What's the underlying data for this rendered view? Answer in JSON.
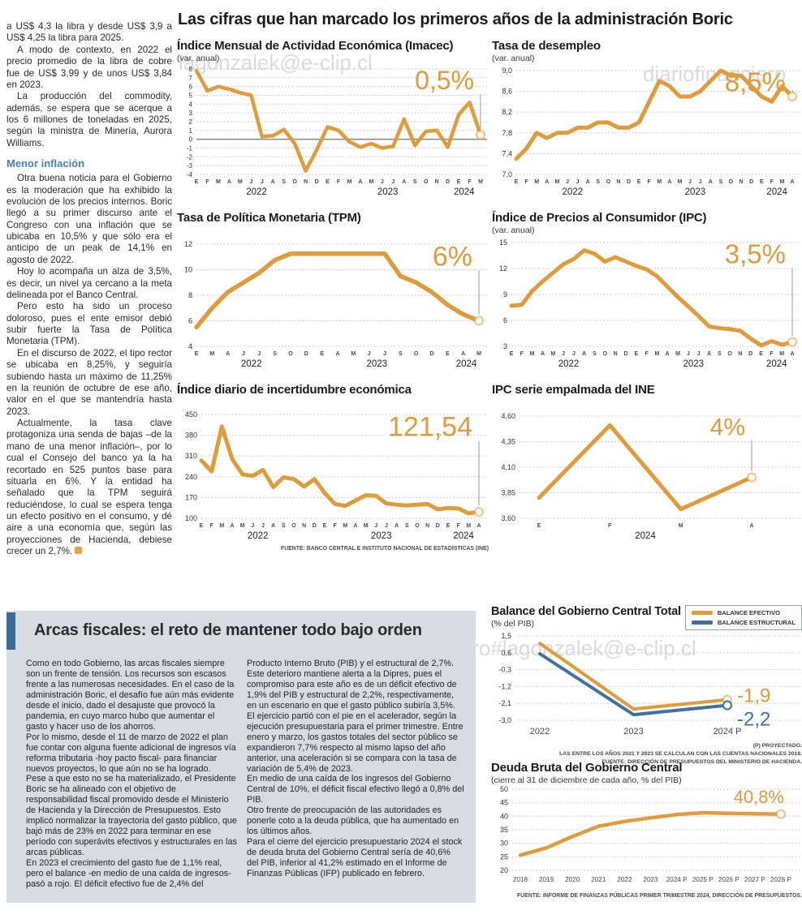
{
  "page": {
    "watermarks": {
      "w1": "lagonzalek@e-clip.cl",
      "w2": "diariofinanciero",
      "w3": "diariofinanciero#lagonzalek@e-clip.cl"
    }
  },
  "headline": "Las cifras que han marcado los primeros años de la administración Boric",
  "left_article": {
    "paragraphs": [
      "a US$ 4,3 la libra y desde US$ 3,9 a US$ 4,25 la libra para 2025.",
      "A modo de contexto, en 2022 el precio promedio de la libra de cobre fue de US$ 3,99 y de unos US$ 3,84 en 2023.",
      "La producción del commodity, además, se espera que se acerque a los 6 millones de toneladas en 2025, según la ministra de Minería, Aurora Williams."
    ],
    "subhead": "Menor inflación",
    "paragraphs2": [
      "Otra buena noticia para el Gobierno es la moderación que ha exhibido la evolución de los precios internos. Boric llegó a su primer discurso ante el Congreso con una inflación que se ubicaba en 10,5% y que sólo era el anticipo de un peak de 14,1% en agosto de 2022.",
      "Hoy lo acompaña un alza de 3,5%, es decir, un nivel ya cercano a la meta delineada por el Banco Central.",
      "Pero esto ha sido un proceso doloroso, pues el ente emisor debió subir fuerte la Tasa de Política Monetaria (TPM).",
      "En el discurso de 2022, el tipo rector se ubicaba en 8,25%, y seguiría subiendo hasta un máximo de 11,25% en la reunión de octubre de ese año, valor en el que se mantendría hasta 2023.",
      "Actualmente, la tasa clave protagoniza una senda de bajas –de la mano de una menor inflación–, por lo cual el Consejo del banco ya la ha recortado en 525 puntos base para situarla en 6%. Y la entidad ha señalado que la TPM seguirá reduciéndose, lo cual se espera tenga un efecto positivo en el consumo, y dé aire a una economía que, según las proyecciones de Hacienda, debiese crecer un 2,7%."
    ]
  },
  "bottom": {
    "headline": "Arcas fiscales: el reto de mantener todo bajo orden",
    "col1": [
      "Como en todo Gobierno, las arcas fiscales siempre son un frente de tensión. Los recursos son escasos frente a las numerosas necesidades. En el caso de la administración Boric, el desafío fue aún más evidente desde el inicio, dado el desajuste que provocó la pandemia, en cuyo marco hubo que aumentar el gasto y hacer uso de los ahorros.",
      "Por lo mismo, desde el 11 de marzo de 2022 el plan fue contar con alguna fuente adicional de ingresos vía reforma tributaria -hoy pacto fiscal- para financiar nuevos proyectos, lo que aún no se ha logrado.",
      "Pese a que esto no se ha materializado, el Presidente Boric se ha alineado con el objetivo de responsabilidad fiscal promovido desde el Ministerio de Hacienda y la Dirección de Presupuestos. Esto implicó normalizar la trayectoria del gasto público, que bajó más de 23% en 2022 para terminar en ese período con superávits efectivos y estructurales en las arcas públicas.",
      "En 2023 el crecimiento del gasto fue de 1,1% real, pero el balance -en medio de una caída de ingresos- pasó a rojo. El déficit efectivo fue de 2,4% del"
    ],
    "col2": [
      "Producto Interno Bruto (PIB) y el estructural de 2,7%. Este deterioro mantiene alerta a la Dipres, pues el compromiso para este año es de un déficit efectivo de 1,9% del PIB y estructural de 2,2%, respectivamente, en un escenario en que el gasto público subiría 3,5%.",
      "El ejercicio partió con el pie en el acelerador, según la ejecución presupuestaria para el primer trimestre. Entre enero y marzo, los gastos totales del sector público se expandieron 7,7% respecto al mismo lapso del año anterior, una aceleración si se compara con la tasa de variación de 5,4% de 2023.",
      "En medio de una caída de los ingresos del Gobierno Central de 10%, el déficit fiscal efectivo llegó a 0,8% del PIB.",
      "Otro frente de preocupación de las autoridades es ponerle coto a la deuda pública, que ha aumentado en los últimos años.",
      "Para el cierre del ejercicio presupuestario 2024 el stock de deuda bruta del Gobierno Central sería de 40,6% del PIB, inferior al 41,2% estimado en el Informe de Finanzas Públicas (IFP) publicado en febrero."
    ]
  },
  "colors": {
    "accent_orange": "#E09B3D",
    "accent_blue": "#3D71A4"
  },
  "chart_data": [
    {
      "type": "line",
      "title": "Índice Mensual de Actividad Económica (Imacec)",
      "subtitle": "(var. anual)",
      "ylim": [
        -4,
        8
      ],
      "yticks": [
        [
          8,
          "8"
        ],
        [
          7,
          "7"
        ],
        [
          6,
          "6"
        ],
        [
          5,
          "5"
        ],
        [
          4,
          "4"
        ],
        [
          3,
          "3"
        ],
        [
          2,
          "2"
        ],
        [
          1,
          "1"
        ],
        [
          0,
          "0"
        ],
        [
          -1,
          "-1"
        ],
        [
          -2,
          "-2"
        ],
        [
          -3,
          "-3"
        ],
        [
          -4,
          "-4"
        ]
      ],
      "zero_line": true,
      "x": [
        "E",
        "F",
        "M",
        "A",
        "M",
        "J",
        "J",
        "A",
        "S",
        "O",
        "N",
        "D",
        "E",
        "F",
        "M",
        "A",
        "M",
        "J",
        "J",
        "A",
        "S",
        "O",
        "N",
        "D",
        "E",
        "F",
        "M"
      ],
      "years": [
        {
          "label": "2022",
          "i": 5.5
        },
        {
          "label": "2023",
          "i": 17.5
        },
        {
          "label": "2024",
          "i": 24.5
        }
      ],
      "series": [
        {
          "name": "Imacec",
          "color": "#E09B3D",
          "values": [
            7.8,
            5.5,
            6.0,
            5.7,
            5.3,
            5.0,
            0.3,
            0.4,
            1.1,
            -0.5,
            -3.6,
            -1.2,
            1.4,
            1.0,
            -0.3,
            -0.9,
            -0.5,
            -1.0,
            -0.8,
            2.3,
            -0.7,
            0.9,
            1.0,
            -0.9,
            2.8,
            4.2,
            0.5
          ],
          "end_label": "0,5%"
        }
      ]
    },
    {
      "type": "line",
      "title": "Tasa de desempleo",
      "subtitle": "(var. anual)",
      "ylim": [
        7.0,
        9.0
      ],
      "yticks": [
        [
          9.0,
          "9,0"
        ],
        [
          8.6,
          "8,6"
        ],
        [
          8.2,
          "8,2"
        ],
        [
          7.8,
          "7,8"
        ],
        [
          7.4,
          "7,4"
        ],
        [
          7.0,
          "7,0"
        ]
      ],
      "zero_line": false,
      "x": [
        "E",
        "F",
        "M",
        "A",
        "M",
        "J",
        "J",
        "A",
        "S",
        "O",
        "N",
        "D",
        "E",
        "F",
        "M",
        "A",
        "M",
        "J",
        "J",
        "A",
        "S",
        "O",
        "N",
        "D",
        "E",
        "F",
        "M",
        "A"
      ],
      "years": [
        {
          "label": "2022",
          "i": 5.5
        },
        {
          "label": "2023",
          "i": 17.5
        },
        {
          "label": "2024",
          "i": 25.5
        }
      ],
      "series": [
        {
          "name": "Tasa de desempleo",
          "color": "#E09B3D",
          "values": [
            7.3,
            7.5,
            7.8,
            7.7,
            7.8,
            7.8,
            7.9,
            7.9,
            8.0,
            8.0,
            7.9,
            7.9,
            8.0,
            8.4,
            8.8,
            8.7,
            8.5,
            8.5,
            8.6,
            8.8,
            9.0,
            8.9,
            8.9,
            8.7,
            8.5,
            8.4,
            8.7,
            8.5
          ],
          "end_label": "8,5%"
        }
      ]
    },
    {
      "type": "line",
      "title": "Tasa de Política Monetaria (TPM)",
      "subtitle": "",
      "ylim": [
        4,
        12
      ],
      "yticks": [
        [
          12,
          "12"
        ],
        [
          10,
          "10"
        ],
        [
          8,
          "8"
        ],
        [
          6,
          "6"
        ],
        [
          4,
          "4"
        ]
      ],
      "zero_line": false,
      "x": [
        "E",
        "M",
        "A",
        "J",
        "J",
        "S",
        "O",
        "D",
        "E",
        "A",
        "M",
        "J",
        "J",
        "S",
        "O",
        "D",
        "E",
        "A",
        "M"
      ],
      "years": [
        {
          "label": "2022",
          "i": 3.5
        },
        {
          "label": "2023",
          "i": 11.5
        },
        {
          "label": "2024",
          "i": 17.2
        }
      ],
      "series": [
        {
          "name": "TPM",
          "color": "#E09B3D",
          "values": [
            5.5,
            7.0,
            8.25,
            9.0,
            9.75,
            10.75,
            11.25,
            11.25,
            11.25,
            11.25,
            11.25,
            11.25,
            11.25,
            9.5,
            9.0,
            8.25,
            7.25,
            6.5,
            6.0
          ],
          "end_label": "6%"
        }
      ]
    },
    {
      "type": "line",
      "title": "Índice de Precios al Consumidor (IPC)",
      "subtitle": "(var. anual)",
      "ylim": [
        3,
        15
      ],
      "yticks": [
        [
          15,
          "15"
        ],
        [
          12,
          "12"
        ],
        [
          9,
          "9"
        ],
        [
          6,
          "6"
        ],
        [
          3,
          "3"
        ]
      ],
      "zero_line": false,
      "x": [
        "E",
        "F",
        "M",
        "A",
        "M",
        "J",
        "J",
        "A",
        "S",
        "O",
        "N",
        "D",
        "E",
        "F",
        "M",
        "A",
        "M",
        "J",
        "J",
        "A",
        "S",
        "O",
        "N",
        "D",
        "E",
        "F",
        "M",
        "A"
      ],
      "years": [
        {
          "label": "2022",
          "i": 5.5
        },
        {
          "label": "2023",
          "i": 17.5
        },
        {
          "label": "2024",
          "i": 25.5
        }
      ],
      "series": [
        {
          "name": "IPC",
          "color": "#E09B3D",
          "values": [
            7.7,
            7.8,
            9.4,
            10.5,
            11.5,
            12.5,
            13.1,
            14.1,
            13.7,
            12.8,
            13.3,
            12.8,
            12.3,
            11.9,
            11.1,
            9.9,
            8.7,
            7.6,
            6.5,
            5.3,
            5.1,
            5.0,
            4.8,
            3.9,
            3.1,
            3.6,
            3.2,
            3.5
          ],
          "end_label": "3,5%"
        }
      ]
    },
    {
      "type": "line",
      "title": "Índice diario de incertidumbre económica",
      "subtitle": "",
      "ylim": [
        100,
        450
      ],
      "yticks": [
        [
          450,
          "450"
        ],
        [
          380,
          "380"
        ],
        [
          310,
          "310"
        ],
        [
          240,
          "240"
        ],
        [
          170,
          "170"
        ],
        [
          100,
          "100"
        ]
      ],
      "zero_line": false,
      "x": [
        "E",
        "F",
        "M",
        "A",
        "M",
        "J",
        "J",
        "A",
        "S",
        "O",
        "N",
        "D",
        "E",
        "F",
        "M",
        "A",
        "M",
        "J",
        "J",
        "A",
        "S",
        "O",
        "N",
        "D",
        "E",
        "F",
        "M",
        "A"
      ],
      "years": [
        {
          "label": "2022",
          "i": 5.5
        },
        {
          "label": "2023",
          "i": 17.5
        },
        {
          "label": "2024",
          "i": 25.5
        }
      ],
      "series": [
        {
          "name": "Incertidumbre económica",
          "color": "#E09B3D",
          "values": [
            295,
            258,
            410,
            300,
            248,
            243,
            263,
            205,
            238,
            232,
            207,
            232,
            185,
            148,
            142,
            160,
            178,
            176,
            150,
            146,
            143,
            146,
            148,
            130,
            135,
            133,
            117,
            121.54
          ],
          "end_label": "121,54"
        }
      ],
      "source": "FUENTE: BANCO CENTRAL E INSTITUTO NACIONAL DE ESTADÍSTICAS (INE)"
    },
    {
      "type": "line",
      "title": "IPC serie empalmada del INE",
      "subtitle": "",
      "ylim": [
        3.6,
        4.6
      ],
      "yticks": [
        [
          4.6,
          "4,60"
        ],
        [
          4.35,
          "4,35"
        ],
        [
          4.1,
          "4,10"
        ],
        [
          3.85,
          "3,85"
        ],
        [
          3.6,
          "3,60"
        ]
      ],
      "zero_line": false,
      "x": [
        "E",
        "F",
        "M",
        "A"
      ],
      "years": [
        {
          "label": "2024",
          "i": 1.5
        }
      ],
      "series": [
        {
          "name": "IPC serie empalmada",
          "color": "#E09B3D",
          "values": [
            3.8,
            4.51,
            3.69,
            4.0
          ],
          "end_label": "4%"
        }
      ]
    },
    {
      "type": "line",
      "title": "Balance del Gobierno Central Total",
      "subtitle": "(% del PIB)",
      "ylim": [
        -3.0,
        1.5
      ],
      "yticks": [
        [
          1.5,
          "1,5"
        ],
        [
          0.6,
          "0,6"
        ],
        [
          -0.3,
          "-0,3"
        ],
        [
          -1.2,
          "-1,2"
        ],
        [
          -2.1,
          "-2,1"
        ],
        [
          -3.0,
          "-3,0"
        ]
      ],
      "zero_line": false,
      "x": [
        "2022",
        "2023",
        "2024 P"
      ],
      "years": [],
      "series": [
        {
          "name": "BALANCE EFECTIVO",
          "color": "#E09B3D",
          "values": [
            1.1,
            -2.4,
            -1.9
          ],
          "end_label": "-1,9"
        },
        {
          "name": "BALANCE ESTRUCTURAL",
          "color": "#3D71A4",
          "values": [
            0.55,
            -2.7,
            -2.2
          ],
          "end_label": "-2,2"
        }
      ],
      "notes": [
        "(P) PROYECTADO.",
        "LAS ENTRE LOS AÑOS 2021 Y 2023 SE CALCULAN  CON LAS CUENTAS NACIONALES 2018.",
        "FUENTE: DIRECCIÓN DE PRESUPUESTOS DEL MINISTERIO DE HACIENDA."
      ]
    },
    {
      "type": "line",
      "title": "Deuda Bruta del Gobierno Central",
      "subtitle": "(cierre al 31 de diciembre de cada año, % del PIB)",
      "ylim": [
        20,
        50
      ],
      "yticks": [
        [
          50,
          "50"
        ],
        [
          45,
          "45"
        ],
        [
          40,
          "40"
        ],
        [
          35,
          "35"
        ],
        [
          30,
          "30"
        ],
        [
          25,
          "25"
        ],
        [
          20,
          "20"
        ]
      ],
      "zero_line": false,
      "x": [
        "2018",
        "2019",
        "2020",
        "2021",
        "2022",
        "2023",
        "2024 P",
        "2025 P",
        "2026 P",
        "2027 P",
        "2028 P"
      ],
      "years": [],
      "series": [
        {
          "name": "Deuda bruta",
          "color": "#E09B3D",
          "values": [
            25.6,
            28.3,
            32.5,
            36.3,
            38.1,
            39.4,
            40.6,
            41.3,
            41.1,
            40.9,
            40.8
          ],
          "end_label": "40,8%"
        }
      ],
      "source": "FUENTE: INFORME DE FINANZAS PÚBLICAS PRIMER TRIMESTRE 2024, DIRECCIÓN DE PRESUPUESTOS."
    }
  ]
}
